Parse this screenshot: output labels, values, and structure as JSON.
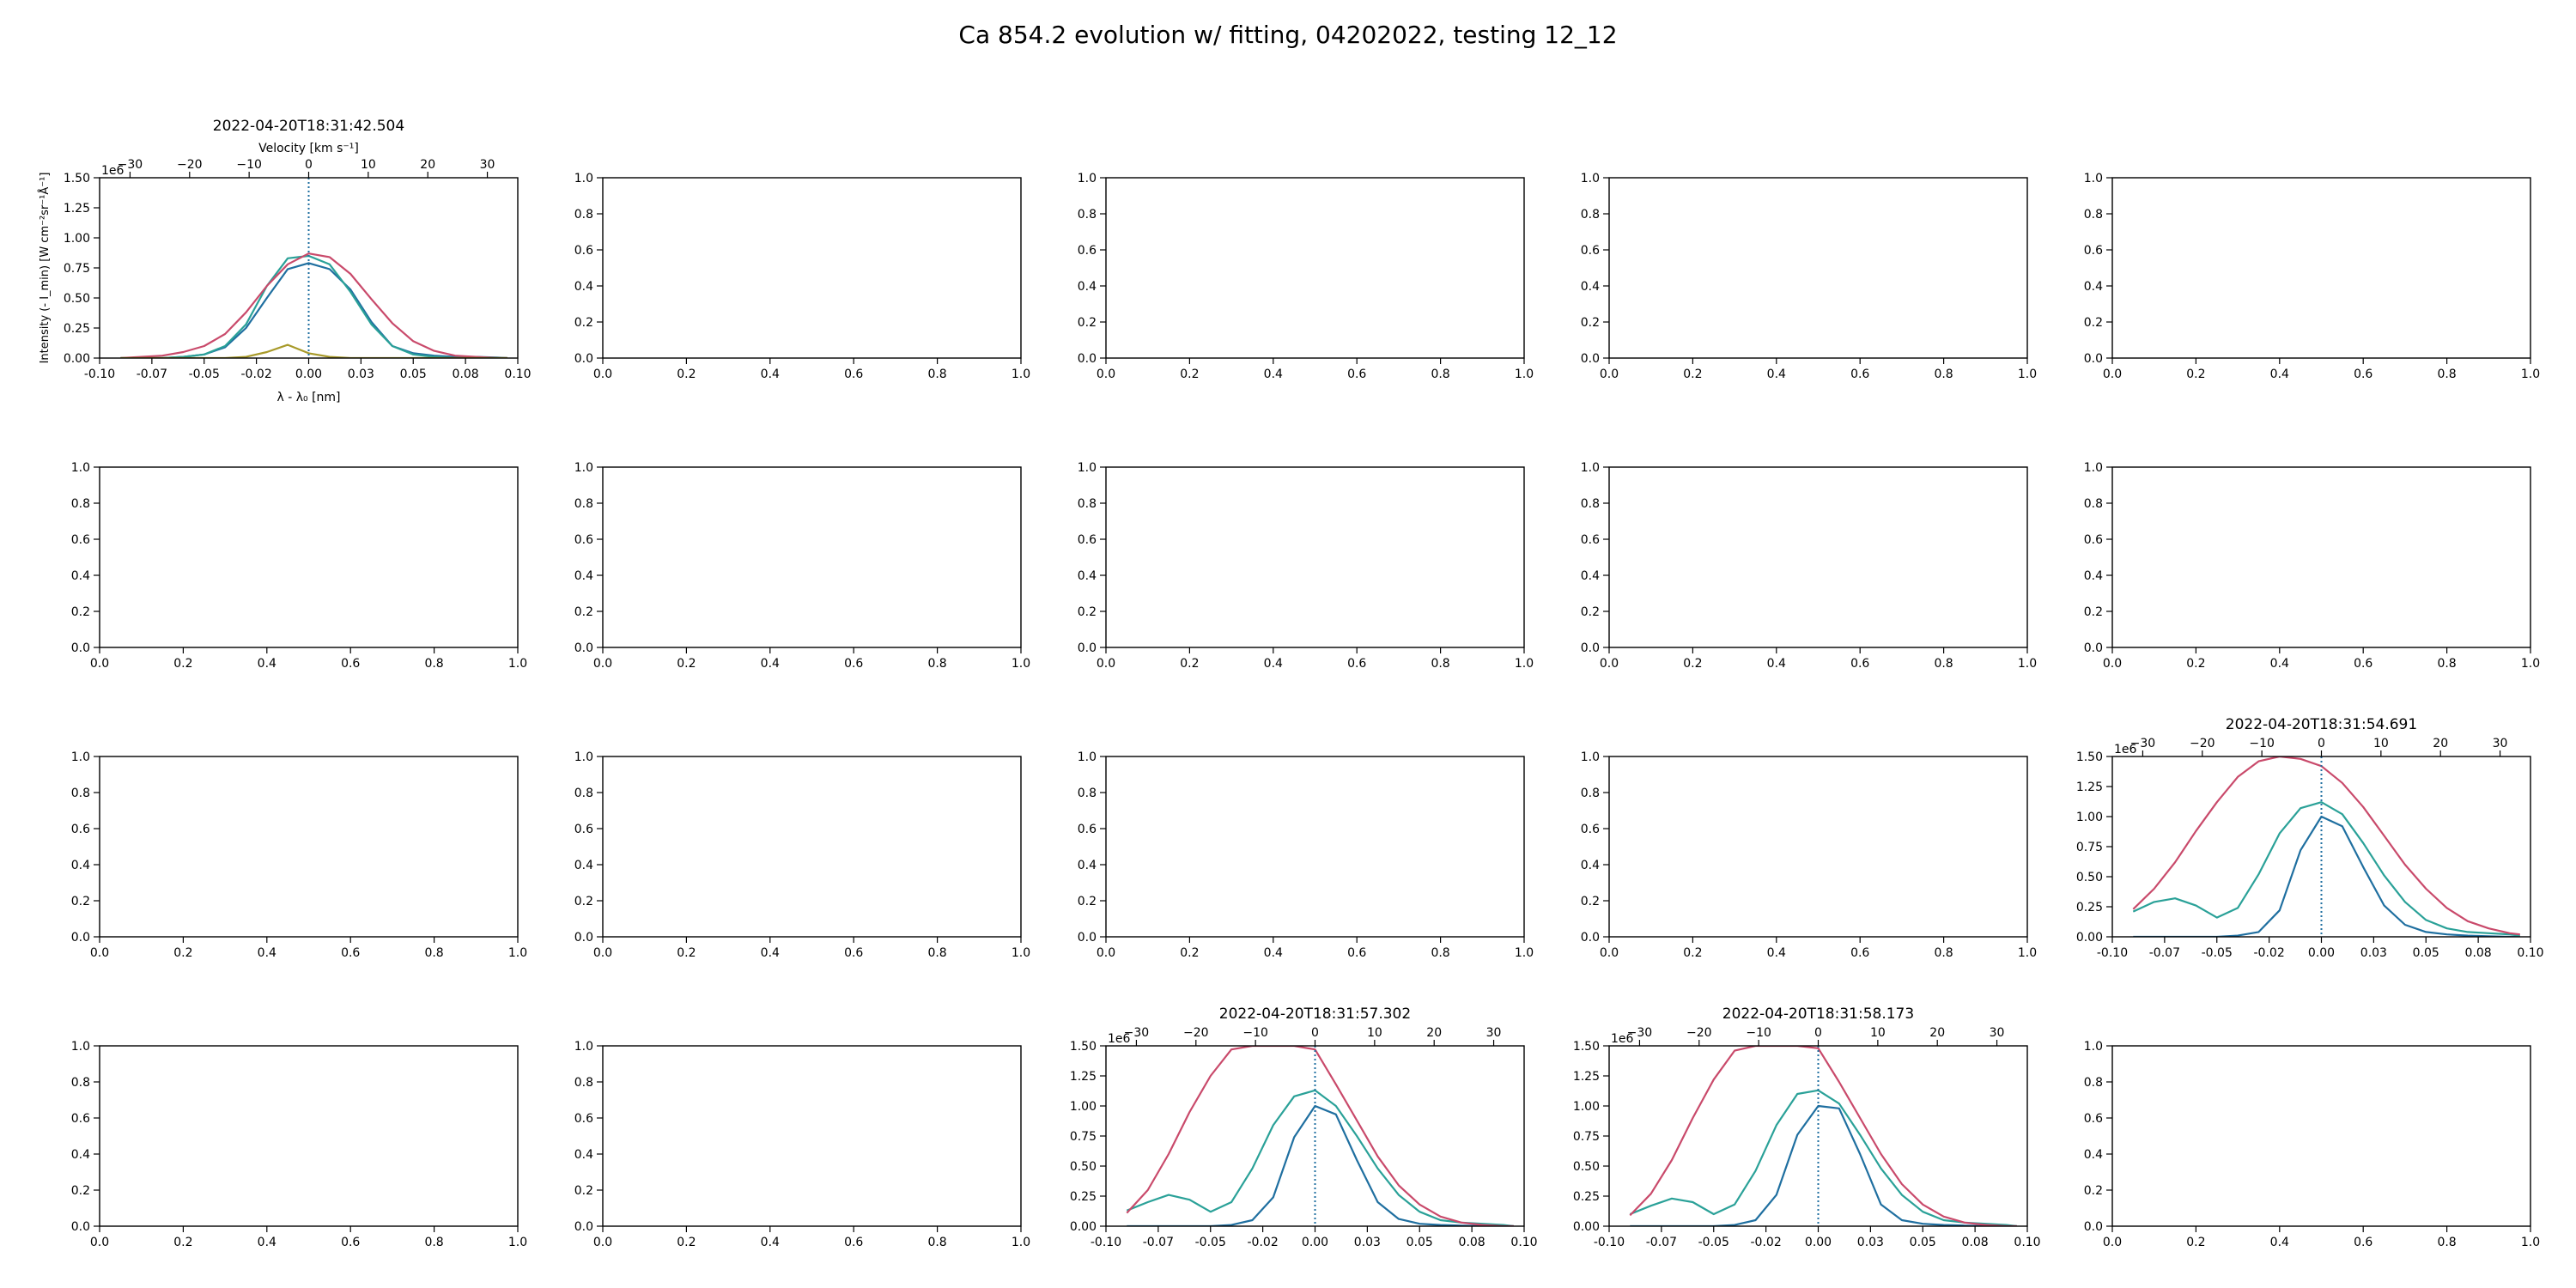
{
  "figure": {
    "title": "Ca 854.2 evolution w/ fitting, 04202022, testing 12_12"
  },
  "chart_data": {
    "type": "line",
    "grid": false,
    "layout": {
      "rows": 4,
      "cols": 5
    },
    "empty_axes": {
      "xlim": [
        0,
        1
      ],
      "ylim": [
        0,
        1
      ],
      "xticks": [
        "0.0",
        "0.2",
        "0.4",
        "0.6",
        "0.8",
        "1.0"
      ],
      "yticks": [
        "0.0",
        "0.2",
        "0.4",
        "0.6",
        "0.8",
        "1.0"
      ]
    },
    "panel_axes": {
      "xlim": [
        -0.1,
        0.1
      ],
      "ylim": [
        0,
        1.5
      ],
      "xticks": [
        -0.1,
        -0.075,
        -0.05,
        -0.025,
        0,
        0.025,
        0.05,
        0.075,
        0.1
      ],
      "xtick_labels": [
        "-0.10",
        "-0.07",
        "-0.05",
        "-0.02",
        "0.00",
        "0.03",
        "0.05",
        "0.08",
        "0.10"
      ],
      "yticks": [
        0,
        0.25,
        0.5,
        0.75,
        1.0,
        1.25,
        1.5
      ],
      "ytick_labels": [
        "0.00",
        "0.25",
        "0.50",
        "0.75",
        "1.00",
        "1.25",
        "1.50"
      ],
      "y_offset_label": "1e6",
      "velocity_ticks": [
        -30,
        -20,
        -10,
        0,
        10,
        20,
        30
      ],
      "velocity_tick_labels": [
        "−30",
        "−20",
        "−10",
        "0",
        "10",
        "20",
        "30"
      ],
      "velocity_per_wavelength": 351.1,
      "reference_line_x": 0
    },
    "colors": {
      "observed": "#1f6fa0",
      "fit_component_1": "#2aa198",
      "fit_component_2": "#c94a6b",
      "fit_component_3": "#a89a2a",
      "reference_line": "#1f6fa0"
    },
    "panels": [
      {
        "row": 0,
        "col": 0,
        "title": "2022-04-20T18:31:42.504",
        "xlabel": "λ - λ₀ [nm]",
        "ylabel": "Intensity (- I_min) [W cm⁻²sr⁻¹Å⁻¹]",
        "top_xlabel": "Velocity [km s⁻¹]",
        "x": [
          -0.09,
          -0.08,
          -0.07,
          -0.06,
          -0.05,
          -0.04,
          -0.03,
          -0.02,
          -0.01,
          0.0,
          0.01,
          0.02,
          0.03,
          0.04,
          0.05,
          0.06,
          0.07,
          0.08,
          0.09,
          0.095
        ],
        "series": [
          {
            "color_key": "observed",
            "values": [
              0.0,
              0.0,
              0.0,
              0.01,
              0.03,
              0.09,
              0.25,
              0.5,
              0.74,
              0.79,
              0.74,
              0.57,
              0.3,
              0.1,
              0.04,
              0.02,
              0.01,
              0.01,
              0.005,
              0.0
            ]
          },
          {
            "color_key": "fit_component_1",
            "values": [
              0.0,
              0.0,
              0.0,
              0.01,
              0.03,
              0.1,
              0.28,
              0.6,
              0.83,
              0.85,
              0.78,
              0.55,
              0.28,
              0.1,
              0.03,
              0.01,
              0.0,
              0.0,
              0.0,
              0.0
            ]
          },
          {
            "color_key": "fit_component_2",
            "values": [
              0.0,
              0.01,
              0.02,
              0.05,
              0.1,
              0.2,
              0.38,
              0.6,
              0.78,
              0.87,
              0.84,
              0.7,
              0.49,
              0.29,
              0.14,
              0.06,
              0.02,
              0.01,
              0.0,
              0.0
            ]
          },
          {
            "color_key": "fit_component_3",
            "values": [
              0.0,
              0.0,
              0.0,
              0.0,
              0.0,
              0.0,
              0.01,
              0.05,
              0.11,
              0.04,
              0.01,
              0.0,
              0.0,
              0.0,
              0.0,
              0.0,
              0.0,
              0.0,
              0.0,
              0.0
            ]
          }
        ]
      },
      {
        "row": 2,
        "col": 4,
        "title": "2022-04-20T18:31:54.691",
        "xlabel": "",
        "ylabel": "",
        "top_xlabel": "",
        "x": [
          -0.09,
          -0.08,
          -0.07,
          -0.06,
          -0.05,
          -0.04,
          -0.03,
          -0.02,
          -0.01,
          0.0,
          0.01,
          0.02,
          0.03,
          0.04,
          0.05,
          0.06,
          0.07,
          0.08,
          0.09,
          0.095
        ],
        "series": [
          {
            "color_key": "observed",
            "values": [
              0.0,
              0.0,
              0.0,
              0.0,
              0.0,
              0.01,
              0.04,
              0.22,
              0.72,
              1.0,
              0.92,
              0.58,
              0.26,
              0.1,
              0.04,
              0.02,
              0.01,
              0.005,
              0.0,
              0.0
            ]
          },
          {
            "color_key": "fit_component_1",
            "values": [
              0.21,
              0.29,
              0.32,
              0.26,
              0.16,
              0.24,
              0.52,
              0.86,
              1.07,
              1.12,
              1.02,
              0.78,
              0.51,
              0.29,
              0.14,
              0.07,
              0.04,
              0.03,
              0.02,
              0.01
            ]
          },
          {
            "color_key": "fit_component_2",
            "values": [
              0.23,
              0.4,
              0.62,
              0.88,
              1.12,
              1.33,
              1.46,
              1.5,
              1.48,
              1.42,
              1.28,
              1.08,
              0.84,
              0.6,
              0.4,
              0.24,
              0.13,
              0.07,
              0.03,
              0.02
            ]
          }
        ]
      },
      {
        "row": 3,
        "col": 2,
        "title": "2022-04-20T18:31:57.302",
        "xlabel": "",
        "ylabel": "",
        "top_xlabel": "",
        "x": [
          -0.09,
          -0.08,
          -0.07,
          -0.06,
          -0.05,
          -0.04,
          -0.03,
          -0.02,
          -0.01,
          0.0,
          0.01,
          0.02,
          0.03,
          0.04,
          0.05,
          0.06,
          0.07,
          0.08,
          0.09,
          0.095
        ],
        "series": [
          {
            "color_key": "observed",
            "values": [
              0.0,
              0.0,
              0.0,
              0.0,
              0.0,
              0.01,
              0.05,
              0.24,
              0.74,
              1.0,
              0.93,
              0.55,
              0.2,
              0.06,
              0.02,
              0.01,
              0.005,
              0.0,
              0.0,
              0.0
            ]
          },
          {
            "color_key": "fit_component_1",
            "values": [
              0.13,
              0.2,
              0.26,
              0.22,
              0.12,
              0.2,
              0.48,
              0.84,
              1.08,
              1.13,
              1.0,
              0.75,
              0.48,
              0.26,
              0.12,
              0.05,
              0.03,
              0.02,
              0.01,
              0.0
            ]
          },
          {
            "color_key": "fit_component_2",
            "values": [
              0.11,
              0.3,
              0.6,
              0.95,
              1.25,
              1.47,
              1.5,
              1.5,
              1.5,
              1.47,
              1.18,
              0.88,
              0.58,
              0.34,
              0.18,
              0.08,
              0.03,
              0.01,
              0.0,
              0.0
            ]
          }
        ]
      },
      {
        "row": 3,
        "col": 3,
        "title": "2022-04-20T18:31:58.173",
        "xlabel": "",
        "ylabel": "",
        "top_xlabel": "",
        "x": [
          -0.09,
          -0.08,
          -0.07,
          -0.06,
          -0.05,
          -0.04,
          -0.03,
          -0.02,
          -0.01,
          0.0,
          0.01,
          0.02,
          0.03,
          0.04,
          0.05,
          0.06,
          0.07,
          0.08,
          0.09,
          0.095
        ],
        "series": [
          {
            "color_key": "observed",
            "values": [
              0.0,
              0.0,
              0.0,
              0.0,
              0.0,
              0.01,
              0.05,
              0.26,
              0.76,
              1.0,
              0.98,
              0.6,
              0.18,
              0.05,
              0.02,
              0.01,
              0.005,
              0.0,
              0.0,
              0.0
            ]
          },
          {
            "color_key": "fit_component_1",
            "values": [
              0.1,
              0.17,
              0.23,
              0.2,
              0.1,
              0.18,
              0.46,
              0.84,
              1.1,
              1.13,
              1.02,
              0.76,
              0.48,
              0.26,
              0.12,
              0.05,
              0.03,
              0.02,
              0.01,
              0.0
            ]
          },
          {
            "color_key": "fit_component_2",
            "values": [
              0.09,
              0.27,
              0.55,
              0.9,
              1.22,
              1.46,
              1.5,
              1.5,
              1.5,
              1.48,
              1.2,
              0.9,
              0.6,
              0.35,
              0.18,
              0.08,
              0.03,
              0.01,
              0.0,
              0.0
            ]
          }
        ]
      }
    ]
  }
}
